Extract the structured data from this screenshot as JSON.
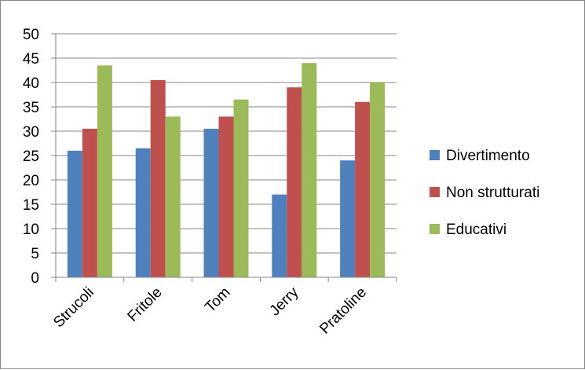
{
  "chart_data": {
    "type": "bar",
    "categories": [
      "Strucoli",
      "Fritole",
      "Tom",
      "Jerry",
      "Pratoline"
    ],
    "series": [
      {
        "name": "Divertimento",
        "color": "#4f81bd",
        "values": [
          26,
          26.5,
          30.5,
          17,
          24
        ]
      },
      {
        "name": "Non strutturati",
        "color": "#c0504d",
        "values": [
          30.5,
          40.5,
          33,
          39,
          36
        ]
      },
      {
        "name": "Educativi",
        "color": "#9bbb59",
        "values": [
          43.5,
          33,
          36.5,
          44,
          40
        ]
      }
    ],
    "ylim": [
      0,
      50
    ],
    "yticks": [
      "0",
      "5",
      "10",
      "15",
      "20",
      "25",
      "30",
      "35",
      "40",
      "45",
      "50"
    ],
    "grid": true,
    "legend_position": "right"
  }
}
